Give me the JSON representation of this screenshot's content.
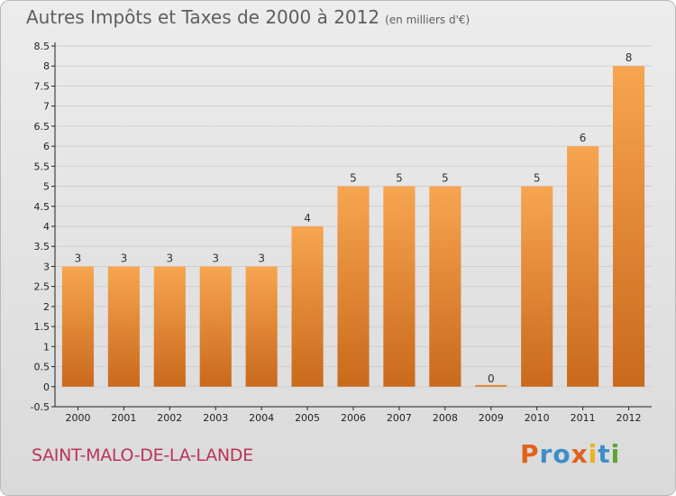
{
  "header": {
    "title": "Autres Impôts et Taxes de 2000 à 2012",
    "unit": "(en milliers d'€)"
  },
  "footer": {
    "commune": "SAINT-MALO-DE-LA-LANDE",
    "logo_letters": [
      "P",
      "r",
      "o",
      "x",
      "i",
      "t",
      "i"
    ],
    "logo_colors": [
      "#e0621c",
      "#3d8ec9",
      "#3d8ec9",
      "#e0621c",
      "#e8b31e",
      "#3d8ec9",
      "#5aa532"
    ]
  },
  "colors": {
    "bar_light": "#f7a550",
    "bar_dark": "#c9691c",
    "grid": "#cfcfcf",
    "axis": "#222222"
  },
  "chart_data": {
    "type": "bar",
    "title": "Autres Impôts et Taxes de 2000 à 2012",
    "categories": [
      "2000",
      "2001",
      "2002",
      "2003",
      "2004",
      "2005",
      "2006",
      "2007",
      "2008",
      "2009",
      "2010",
      "2011",
      "2012"
    ],
    "values": [
      3,
      3,
      3,
      3,
      3,
      4,
      5,
      5,
      5,
      0,
      5,
      6,
      8
    ],
    "value_labels": [
      "3",
      "3",
      "3",
      "3",
      "3",
      "4",
      "5",
      "5",
      "5",
      "0",
      "5",
      "6",
      "8"
    ],
    "y_ticks": [
      "-0.5",
      "0",
      "0.5",
      "1",
      "1.5",
      "2",
      "2.5",
      "3",
      "3.5",
      "4",
      "4.5",
      "5",
      "5.5",
      "6",
      "6.5",
      "7",
      "7.5",
      "8",
      "8.5"
    ],
    "ylim": [
      -0.5,
      8.5
    ],
    "grid": true,
    "legend": "none"
  }
}
